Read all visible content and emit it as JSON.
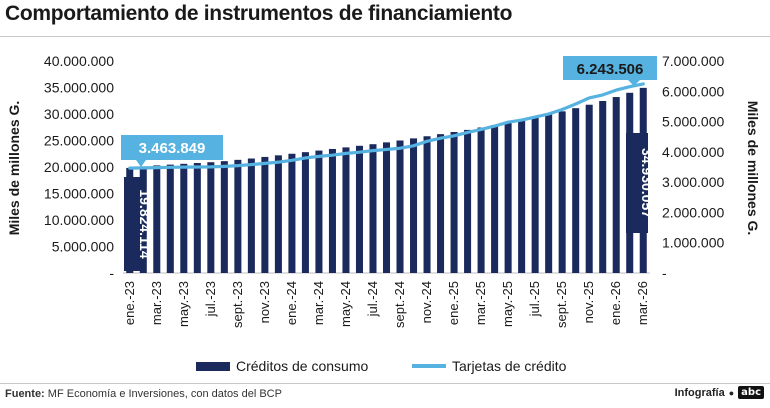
{
  "header": {
    "title": "Comportamiento de instrumentos de financiamiento"
  },
  "footer": {
    "source_label": "Fuente:",
    "source_text": "MF Economía e Inversiones, con datos del BCP",
    "credit": "Infografía",
    "logo": "abc"
  },
  "colors": {
    "bars": "#1b2a5c",
    "line": "#56b2e0",
    "callout": "#56b2e0"
  },
  "chart_data": {
    "type": "bar+line",
    "categories": [
      "ene.-23",
      "feb.-23",
      "mar.-23",
      "abr.-23",
      "may.-23",
      "jun.-23",
      "jul.-23",
      "ago.-23",
      "sept.-23",
      "oct.-23",
      "nov.-23",
      "dic.-23",
      "ene.-24",
      "feb.-24",
      "mar.-24",
      "abr.-24",
      "may.-24",
      "jun.-24",
      "jul.-24",
      "ago.-24",
      "sept.-24",
      "oct.-24",
      "nov.-24",
      "dic.-24",
      "ene.-25",
      "feb.-25",
      "mar.-25",
      "abr.-25",
      "may.-25",
      "jun.-25",
      "jul.-25",
      "ago.-25",
      "sept.-25",
      "oct.-25",
      "nov.-25",
      "dic.-25",
      "ene.-26",
      "feb.-26",
      "mar.-26"
    ],
    "x_tick_labels": [
      "ene.-23",
      "mar.-23",
      "may.-23",
      "jul.-23",
      "sept.-23",
      "nov.-23",
      "ene.-24",
      "mar.-24",
      "may.-24",
      "jul.-24",
      "sept.-24",
      "nov.-24",
      "ene.-25",
      "mar.-25",
      "may.-25",
      "jul.-25",
      "sept.-25",
      "nov.-25",
      "ene.-26",
      "mar.-26"
    ],
    "series": [
      {
        "name": "Créditos de consumo",
        "type": "bar",
        "axis": "left",
        "values": [
          19824114,
          20100000,
          20300000,
          20450000,
          20600000,
          20750000,
          20900000,
          21100000,
          21350000,
          21600000,
          21900000,
          22200000,
          22500000,
          22800000,
          23100000,
          23400000,
          23700000,
          24000000,
          24300000,
          24650000,
          25000000,
          25400000,
          25800000,
          26200000,
          26600000,
          27000000,
          27450000,
          27900000,
          28400000,
          28900000,
          29400000,
          29950000,
          30500000,
          31100000,
          31750000,
          32450000,
          33200000,
          34000000,
          34930057
        ]
      },
      {
        "name": "Tarjetas de crédito",
        "type": "line",
        "axis": "right",
        "values": [
          3463849,
          3470000,
          3480000,
          3490000,
          3495000,
          3500000,
          3505000,
          3520000,
          3545000,
          3580000,
          3620000,
          3660000,
          3720000,
          3800000,
          3850000,
          3890000,
          3950000,
          3990000,
          4040000,
          4080000,
          4120000,
          4200000,
          4350000,
          4450000,
          4530000,
          4640000,
          4740000,
          4850000,
          4980000,
          5050000,
          5150000,
          5250000,
          5400000,
          5580000,
          5780000,
          5880000,
          6040000,
          6150000,
          6243506
        ]
      }
    ],
    "y_left": {
      "label": "Miles de millones G.",
      "min": 0,
      "max": 40000000,
      "ticks": [
        "-",
        "5.000.000",
        "10.000.000",
        "15.000.000",
        "20.000.000",
        "25.000.000",
        "30.000.000",
        "35.000.000",
        "40.000.000"
      ]
    },
    "y_right": {
      "label": "Miles de millones G.",
      "min": 0,
      "max": 7000000,
      "ticks": [
        "-",
        "1.000.000",
        "2.000.000",
        "3.000.000",
        "4.000.000",
        "5.000.000",
        "6.000.000",
        "7.000.000"
      ]
    },
    "annotations": {
      "first_bar": "19.824.114",
      "last_bar": "34.930.057",
      "first_line": "3.463.849",
      "last_line": "6.243.506"
    },
    "legend": {
      "position": "bottom",
      "items": [
        "Créditos de consumo",
        "Tarjetas de crédito"
      ]
    }
  }
}
